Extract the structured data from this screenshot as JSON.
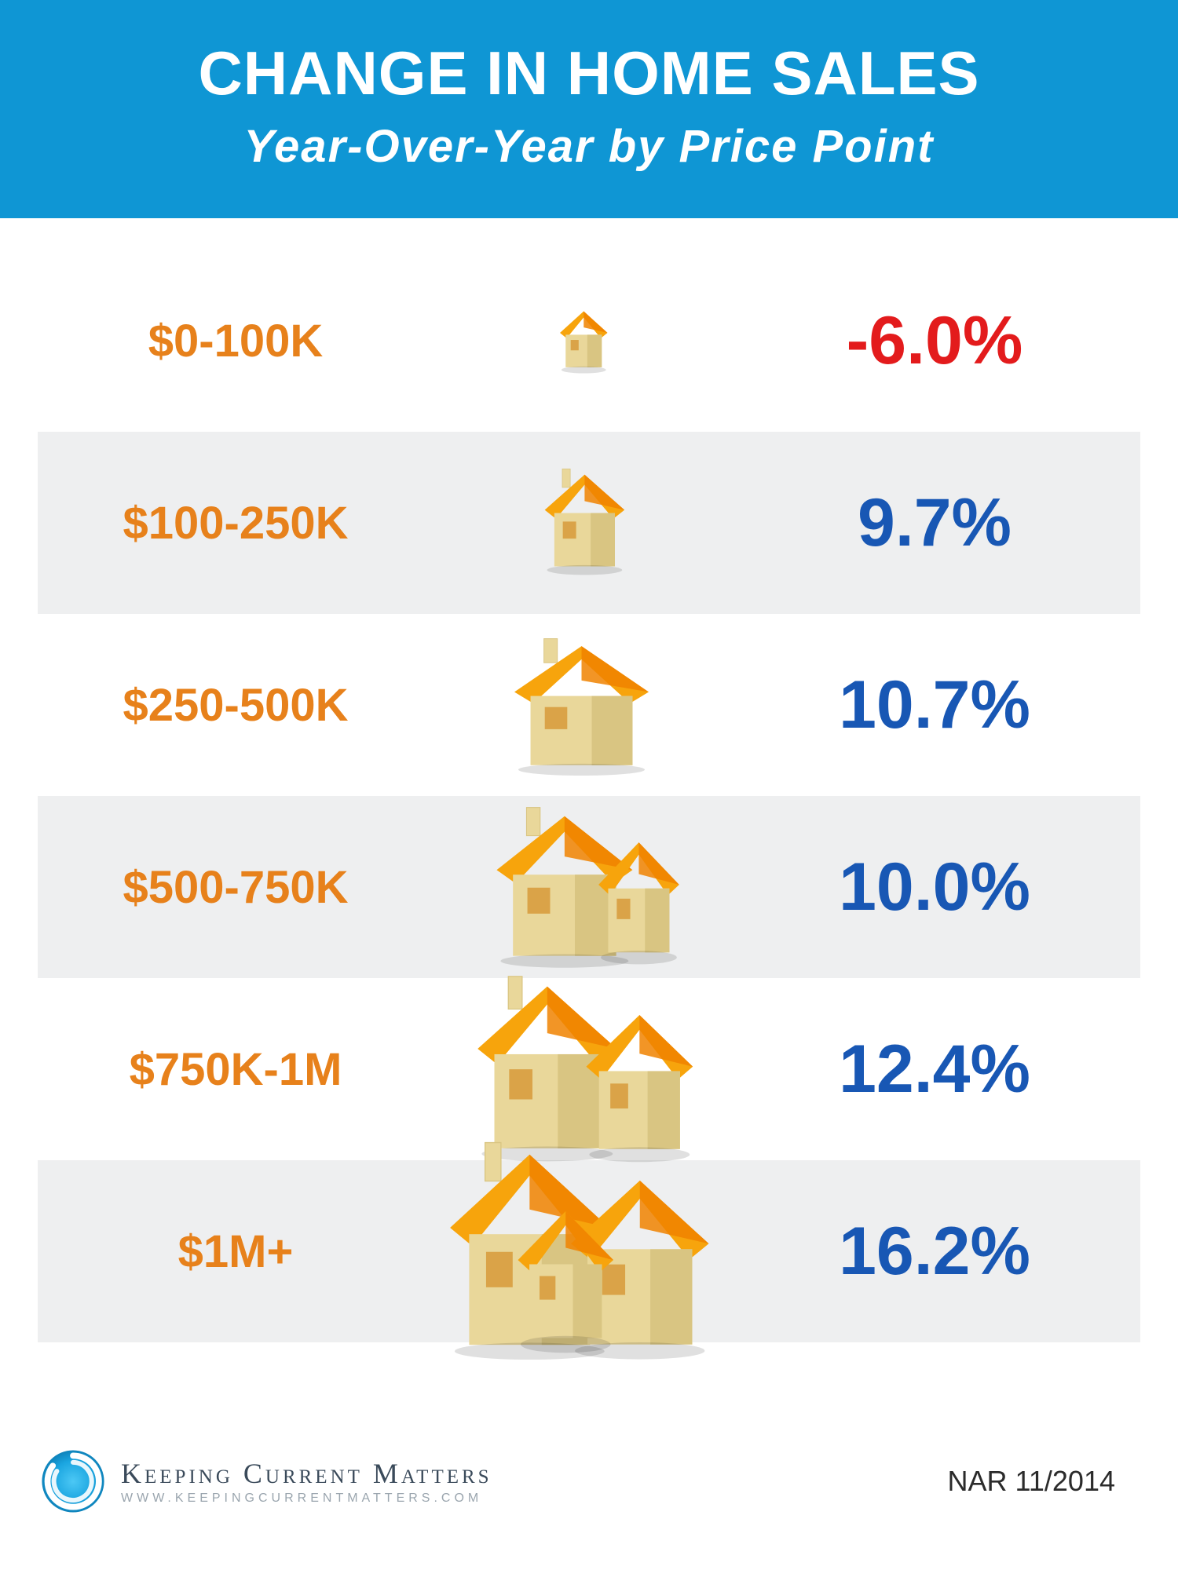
{
  "header": {
    "title": "CHANGE IN HOME SALES",
    "subtitle": "Year-Over-Year  by Price Point",
    "bg_color": "#0f96d4",
    "title_color": "#ffffff",
    "subtitle_color": "#ffffff",
    "title_fontsize": 78,
    "subtitle_fontsize": 58
  },
  "rows": [
    {
      "label": "$0-100K",
      "value": "-6.0%",
      "value_color": "#e31b1c",
      "row_bg": "#ffffff",
      "house_scale": 0.55,
      "house_variant": "single"
    },
    {
      "label": "$100-250K",
      "value": "9.7%",
      "value_color": "#1857b4",
      "row_bg": "#eeeff0",
      "house_scale": 0.78,
      "house_variant": "single-chimney"
    },
    {
      "label": "$250-500K",
      "value": "10.7%",
      "value_color": "#1857b4",
      "row_bg": "#ffffff",
      "house_scale": 0.95,
      "house_variant": "wide"
    },
    {
      "label": "$500-750K",
      "value": "10.0%",
      "value_color": "#1857b4",
      "row_bg": "#eeeff0",
      "house_scale": 1.08,
      "house_variant": "wide-wing"
    },
    {
      "label": "$750K-1M",
      "value": "12.4%",
      "value_color": "#1857b4",
      "row_bg": "#ffffff",
      "house_scale": 1.18,
      "house_variant": "double"
    },
    {
      "label": "$1M+",
      "value": "16.2%",
      "value_color": "#1857b4",
      "row_bg": "#eeeff0",
      "house_scale": 1.35,
      "house_variant": "triple"
    }
  ],
  "style": {
    "label_color": "#e7811b",
    "label_fontsize": 58,
    "value_fontsize": 86,
    "house_roof_color": "#f7a40c",
    "house_roof_edge": "#f08200",
    "house_wall_color": "#e9d79a",
    "house_wall_shade": "#d9c582",
    "house_window_color": "#d79a3a",
    "alt_row_bg": "#eeeff0"
  },
  "footer": {
    "brand_title": "Keeping Current Matters",
    "brand_url": "WWW.KEEPINGCURRENTMATTERS.COM",
    "source": "NAR 11/2014",
    "logo_outer": "#0b79b0",
    "logo_inner": "#1aa5e0",
    "logo_bg": "#ffffff"
  }
}
